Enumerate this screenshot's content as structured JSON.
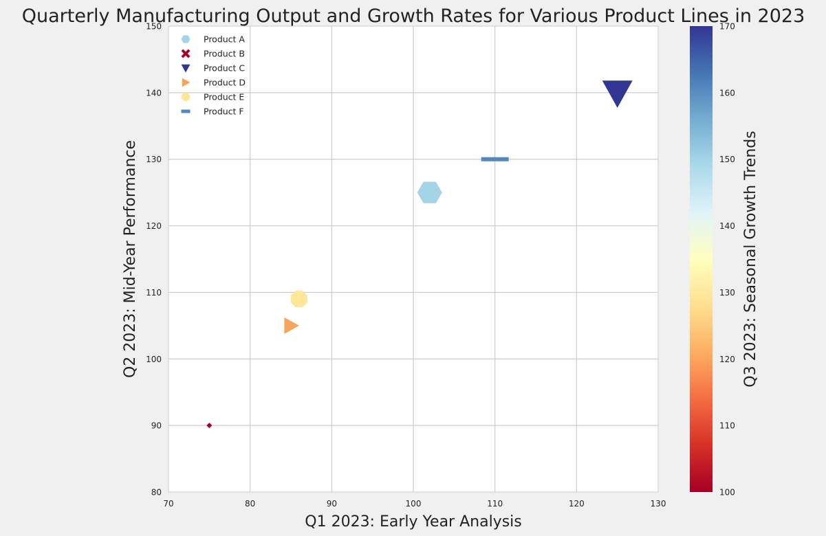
{
  "chart_data": {
    "type": "scatter",
    "title": "Quarterly Manufacturing Output and Growth Rates for Various Product Lines in 2023",
    "xlabel": "Q1 2023: Early Year Analysis",
    "ylabel": "Q2 2023: Mid-Year Performance",
    "colorbar_label": "Q3 2023: Seasonal Growth Trends",
    "xlim": [
      70,
      130
    ],
    "ylim": [
      80,
      150
    ],
    "xticks": [
      70,
      80,
      90,
      100,
      110,
      120,
      130
    ],
    "yticks": [
      80,
      90,
      100,
      110,
      120,
      130,
      140,
      150
    ],
    "color_range": [
      100,
      170
    ],
    "colorbar_ticks": [
      100,
      110,
      120,
      130,
      140,
      150,
      160,
      170
    ],
    "colormap": "RdYlBu",
    "grid": true,
    "legend_position": "top-left",
    "series": [
      {
        "name": "Product A",
        "x": 102,
        "y": 125,
        "color_value": 150,
        "marker": "hexagon",
        "size": 18,
        "color": "#a4d4e6"
      },
      {
        "name": "Product B",
        "x": 75,
        "y": 90,
        "color_value": 100,
        "marker": "x",
        "size": 4,
        "color": "#a50026"
      },
      {
        "name": "Product C",
        "x": 125,
        "y": 140,
        "color_value": 170,
        "marker": "triangle-down",
        "size": 22,
        "color": "#313695"
      },
      {
        "name": "Product D",
        "x": 85,
        "y": 105,
        "color_value": 120,
        "marker": "triangle-right",
        "size": 12,
        "color": "#f7a35c"
      },
      {
        "name": "Product E",
        "x": 86,
        "y": 109,
        "color_value": 130,
        "marker": "octagon",
        "size": 13,
        "color": "#fee597"
      },
      {
        "name": "Product F",
        "x": 110,
        "y": 130,
        "color_value": 160,
        "marker": "hline",
        "size": 20,
        "color": "#5288bd"
      }
    ]
  }
}
